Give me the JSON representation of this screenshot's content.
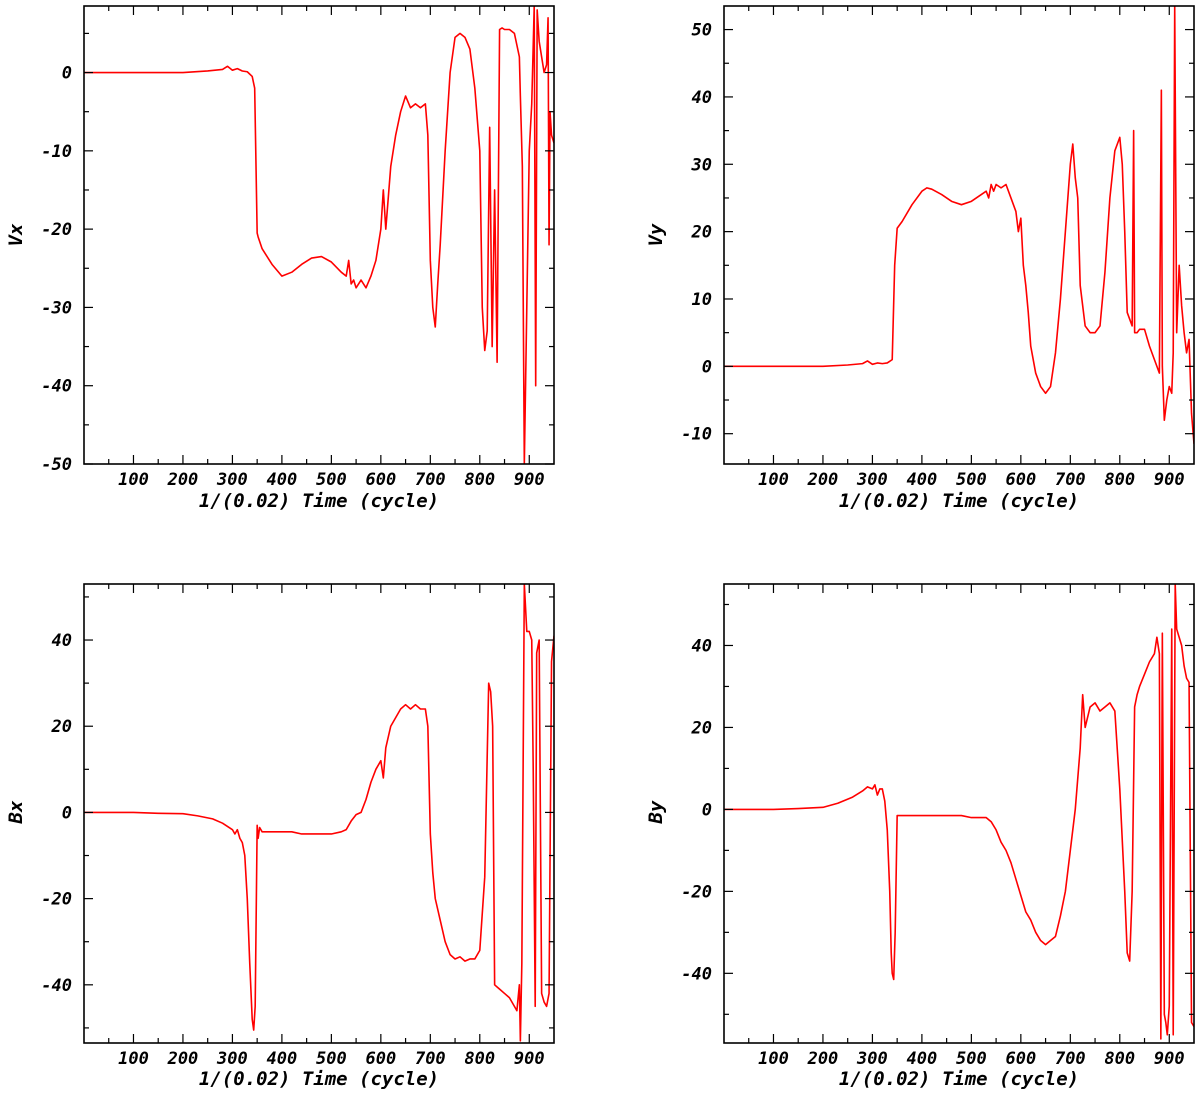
{
  "colors": {
    "series": "#ff0000",
    "axes": "#000000",
    "background": "#ffffff"
  },
  "chart_data": [
    {
      "type": "line",
      "xlabel": "1/(0.02) Time (cycle)",
      "ylabel": "Vx",
      "xlim": [
        0,
        950
      ],
      "ylim": [
        -50,
        8.5
      ],
      "xticks": [
        100,
        200,
        300,
        400,
        500,
        600,
        700,
        800,
        900
      ],
      "yticks": [
        -50,
        -40,
        -30,
        -20,
        -10,
        0
      ],
      "grid": false,
      "series": [
        {
          "x": [
            0,
            50,
            100,
            150,
            200,
            250,
            280,
            290,
            300,
            310,
            320,
            330,
            340,
            345,
            350,
            352,
            360,
            380,
            400,
            420,
            440,
            460,
            480,
            500,
            520,
            530,
            535,
            540,
            545,
            550,
            560,
            570,
            580,
            590,
            600,
            605,
            610,
            620,
            630,
            640,
            650,
            660,
            670,
            680,
            690,
            695,
            700,
            705,
            710,
            715,
            720,
            730,
            740,
            750,
            760,
            770,
            780,
            790,
            800,
            805,
            810,
            815,
            820,
            825,
            830,
            835,
            840,
            845,
            850,
            860,
            870,
            880,
            882,
            886,
            890,
            900,
            905,
            910,
            913,
            916,
            920,
            925,
            930,
            935,
            938,
            940,
            942,
            945,
            950
          ],
          "y": [
            0,
            0,
            0,
            0,
            0,
            0.2,
            0.4,
            0.8,
            0.3,
            0.5,
            0.2,
            0.1,
            -0.5,
            -2,
            -20.5,
            -21,
            -22.5,
            -24.5,
            -26,
            -25.5,
            -24.5,
            -23.7,
            -23.5,
            -24.2,
            -25.5,
            -26,
            -24,
            -27,
            -26.5,
            -27.5,
            -26.5,
            -27.5,
            -26,
            -24,
            -20,
            -15,
            -20,
            -12,
            -8,
            -5,
            -3,
            -4.5,
            -4,
            -4.5,
            -4,
            -8,
            -24,
            -30,
            -32.5,
            -27,
            -22,
            -10,
            0,
            4.5,
            5,
            4.5,
            3,
            -2,
            -10,
            -30,
            -35.5,
            -33,
            -7,
            -35,
            -15,
            -37,
            5.5,
            5.7,
            5.5,
            5.5,
            5,
            2,
            -3,
            -12,
            -50,
            -10,
            -4,
            8.5,
            -40,
            8,
            4,
            2,
            0,
            1,
            7,
            -22,
            -5,
            -8,
            -9
          ]
        }
      ]
    },
    {
      "type": "line",
      "xlabel": "1/(0.02) Time (cycle)",
      "ylabel": "Vy",
      "xlim": [
        0,
        950
      ],
      "ylim": [
        -14.5,
        53.5
      ],
      "xticks": [
        100,
        200,
        300,
        400,
        500,
        600,
        700,
        800,
        900
      ],
      "yticks": [
        -10,
        0,
        10,
        20,
        30,
        40,
        50
      ],
      "grid": false,
      "series": [
        {
          "x": [
            0,
            50,
            100,
            150,
            200,
            250,
            280,
            290,
            300,
            310,
            320,
            330,
            340,
            345,
            350,
            360,
            380,
            400,
            410,
            420,
            440,
            460,
            480,
            500,
            520,
            530,
            535,
            540,
            545,
            550,
            560,
            570,
            580,
            590,
            595,
            600,
            605,
            610,
            615,
            620,
            630,
            640,
            650,
            660,
            670,
            680,
            690,
            700,
            705,
            710,
            715,
            720,
            730,
            740,
            750,
            760,
            770,
            780,
            790,
            800,
            805,
            810,
            815,
            820,
            825,
            828,
            830,
            835,
            840,
            850,
            860,
            870,
            880,
            884,
            886,
            890,
            895,
            900,
            905,
            908,
            911,
            915,
            920,
            925,
            930,
            935,
            940,
            945,
            950
          ],
          "y": [
            0,
            0,
            0,
            0,
            0,
            0.2,
            0.4,
            0.8,
            0.3,
            0.5,
            0.4,
            0.5,
            1,
            15,
            20.5,
            21.5,
            24,
            26,
            26.5,
            26.3,
            25.5,
            24.5,
            24,
            24.5,
            25.5,
            26,
            25,
            27,
            26,
            27,
            26.5,
            27,
            25,
            23,
            20,
            22,
            15,
            12,
            8,
            3,
            -1,
            -3,
            -4,
            -3,
            2,
            10,
            20,
            30,
            33,
            28,
            25,
            12,
            6,
            5,
            5,
            6,
            14,
            25,
            32,
            34,
            30,
            20,
            8,
            7,
            6,
            35,
            5,
            5,
            5.5,
            5.5,
            3,
            1,
            -1,
            41,
            0,
            -8,
            -5,
            -3,
            -4,
            2,
            53.5,
            5,
            15,
            9,
            5,
            2,
            4,
            -7,
            -11.5
          ]
        }
      ]
    },
    {
      "type": "line",
      "xlabel": "1/(0.02) Time (cycle)",
      "ylabel": "Bx",
      "xlim": [
        0,
        950
      ],
      "ylim": [
        -53.5,
        53
      ],
      "xticks": [
        100,
        200,
        300,
        400,
        500,
        600,
        700,
        800,
        900
      ],
      "yticks": [
        -40,
        -20,
        0,
        20,
        40
      ],
      "grid": false,
      "series": [
        {
          "x": [
            0,
            50,
            100,
            150,
            200,
            230,
            260,
            280,
            300,
            305,
            310,
            315,
            320,
            325,
            330,
            335,
            340,
            343,
            346,
            350,
            352,
            355,
            360,
            380,
            400,
            420,
            440,
            460,
            480,
            500,
            520,
            530,
            540,
            550,
            560,
            570,
            580,
            590,
            600,
            605,
            610,
            620,
            630,
            640,
            650,
            660,
            670,
            680,
            690,
            695,
            700,
            705,
            710,
            720,
            730,
            740,
            750,
            760,
            770,
            780,
            790,
            800,
            810,
            818,
            822,
            826,
            830,
            835,
            840,
            850,
            860,
            870,
            875,
            880,
            882,
            885,
            890,
            895,
            900,
            905,
            908,
            912,
            915,
            920,
            925,
            930,
            935,
            940,
            945,
            950
          ],
          "y": [
            0,
            0,
            0,
            -0.2,
            -0.3,
            -0.8,
            -1.5,
            -2.5,
            -4,
            -5,
            -4,
            -6,
            -7,
            -10,
            -20,
            -35,
            -48,
            -50.5,
            -45,
            -3,
            -6,
            -3.5,
            -4.5,
            -4.5,
            -4.5,
            -4.5,
            -5,
            -5,
            -5,
            -5,
            -4.5,
            -4,
            -2,
            -0.5,
            0,
            3,
            7,
            10,
            12,
            8,
            15,
            20,
            22,
            24,
            25,
            24,
            25,
            24,
            24,
            20,
            -5,
            -14,
            -20,
            -25,
            -30,
            -33,
            -34,
            -33.5,
            -34.5,
            -34,
            -34,
            -32,
            -15,
            30,
            28,
            20,
            -40,
            -40.5,
            -41,
            -42,
            -43,
            -45,
            -46,
            -40,
            -53,
            -35,
            53,
            42,
            42,
            40,
            10,
            -45,
            37,
            40,
            -42,
            -44,
            -45,
            -42,
            35,
            41
          ]
        }
      ]
    },
    {
      "type": "line",
      "xlabel": "1/(0.02) Time (cycle)",
      "ylabel": "By",
      "xlim": [
        0,
        950
      ],
      "ylim": [
        -57,
        55
      ],
      "xticks": [
        100,
        200,
        300,
        400,
        500,
        600,
        700,
        800,
        900
      ],
      "yticks": [
        -40,
        -20,
        0,
        20,
        40
      ],
      "grid": false,
      "series": [
        {
          "x": [
            0,
            50,
            100,
            150,
            200,
            230,
            260,
            280,
            290,
            300,
            305,
            310,
            315,
            320,
            325,
            330,
            335,
            338,
            340,
            343,
            346,
            350,
            360,
            380,
            400,
            420,
            440,
            460,
            480,
            500,
            520,
            530,
            540,
            550,
            560,
            570,
            580,
            590,
            600,
            610,
            620,
            630,
            640,
            650,
            660,
            670,
            680,
            690,
            700,
            710,
            720,
            725,
            730,
            740,
            750,
            760,
            770,
            780,
            790,
            800,
            810,
            815,
            820,
            825,
            830,
            835,
            840,
            850,
            860,
            870,
            875,
            880,
            883,
            886,
            890,
            893,
            896,
            900,
            905,
            908,
            912,
            915,
            920,
            925,
            930,
            935,
            940,
            945,
            950
          ],
          "y": [
            0,
            0,
            0,
            0.2,
            0.5,
            1.5,
            3,
            4.5,
            5.5,
            5,
            6,
            3.5,
            5,
            5,
            2,
            -5,
            -20,
            -35,
            -40,
            -41.5,
            -30,
            -1.5,
            -1.5,
            -1.5,
            -1.5,
            -1.5,
            -1.5,
            -1.5,
            -1.5,
            -2,
            -2,
            -2,
            -3,
            -5,
            -8,
            -10,
            -13,
            -17,
            -21,
            -25,
            -27,
            -30,
            -32,
            -33,
            -32,
            -31,
            -26,
            -20,
            -10,
            0,
            15,
            28,
            20,
            25,
            26,
            24,
            25,
            26,
            24,
            5,
            -20,
            -35,
            -37,
            -20,
            25,
            28,
            30,
            33,
            36,
            38,
            42,
            38,
            -56,
            43,
            -50,
            -52,
            -55,
            -48,
            44,
            -55,
            55,
            44,
            42,
            40,
            35,
            32,
            31,
            -52,
            -53
          ]
        }
      ]
    }
  ]
}
